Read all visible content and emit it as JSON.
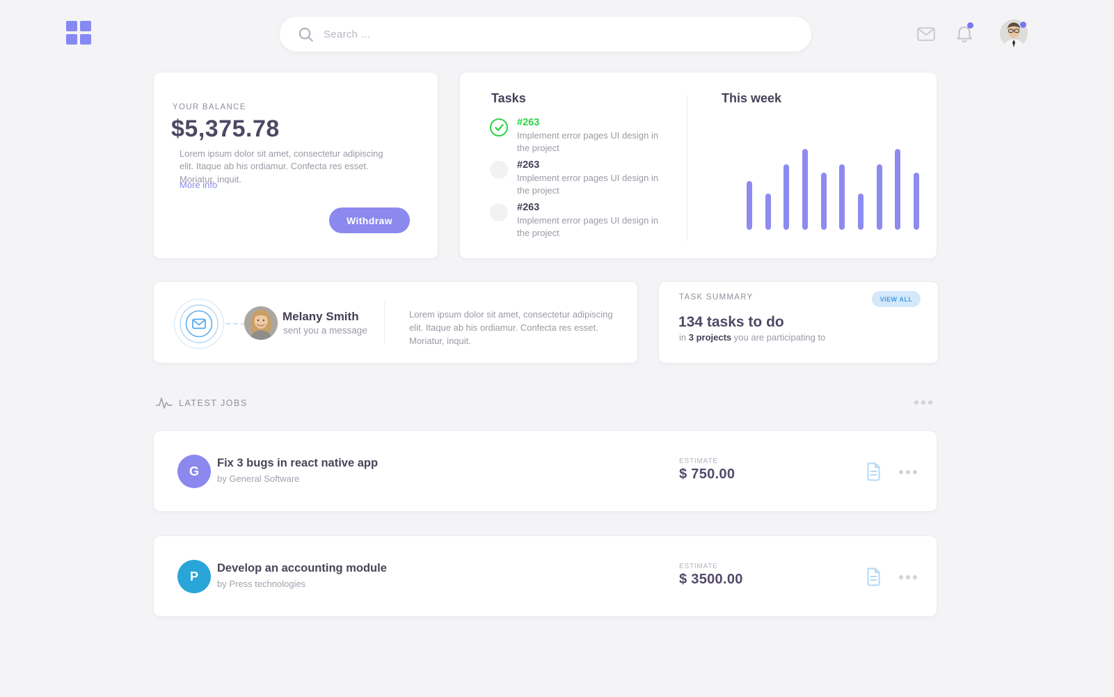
{
  "header": {
    "search": {
      "placeholder": "Search ..."
    },
    "icons": {
      "logo": "grid-icon",
      "search": "search-icon",
      "mail": "mail-icon",
      "notifications": "bell-icon",
      "profile": "avatar"
    }
  },
  "balance_card": {
    "label": "YOUR BALANCE",
    "amount": "$5,375.78",
    "description": "Lorem ipsum dolor sit amet, consectetur adipiscing elit. Itaque ab his ordiamur. Confecta res esset. Moriatur, inquit.",
    "more_info_label": "More info",
    "withdraw_label": "Withdraw"
  },
  "tasks_card": {
    "title": "Tasks",
    "items": [
      {
        "id": "#263",
        "description": "Implement error pages UI design in the project",
        "status": "done"
      },
      {
        "id": "#263",
        "description": "Implement error pages UI design in the project",
        "status": "pending"
      },
      {
        "id": "#263",
        "description": "Implement error pages UI design in the project",
        "status": "pending"
      }
    ]
  },
  "chart_data": {
    "type": "bar",
    "title": "This week",
    "x": [
      1,
      2,
      3,
      4,
      5,
      6,
      7,
      8,
      9,
      10
    ],
    "values": [
      60,
      45,
      81,
      100,
      71,
      81,
      45,
      81,
      100,
      71
    ],
    "ylim": [
      0,
      100
    ],
    "xlabel": "",
    "ylabel": "",
    "grid": false,
    "tick_labels_visible": false,
    "bar_color": "#8d8bf0",
    "legend": "none"
  },
  "message_card": {
    "icon": "envelope-rings-icon",
    "name": "Melany Smith",
    "subtitle": "sent you a message",
    "text": "Lorem ipsum dolor sit amet, consectetur adipiscing elit. Itaque ab his ordiamur. Confecta res esset. Moriatur, inquit."
  },
  "summary_card": {
    "label": "TASK SUMMARY",
    "view_all_label": "VIEW ALL",
    "headline": "134 tasks to do",
    "sub_prefix": "in ",
    "sub_bold": "3 projects",
    "sub_suffix": " you are participating to"
  },
  "jobs_section": {
    "title": "LATEST JOBS",
    "more_icon": "ellipsis-icon",
    "items": [
      {
        "initial": "G",
        "title": "Fix 3 bugs in react native app",
        "company": "by General Software",
        "estimate_label": "ESTIMATE",
        "estimate": "$ 750.00",
        "avatar_color": "#8b89ee"
      },
      {
        "initial": "P",
        "title": "Develop an accounting module",
        "company": "by Press technologies",
        "estimate_label": "ESTIMATE",
        "estimate": "$ 3500.00",
        "avatar_color": "#29a5d8"
      }
    ]
  },
  "colors": {
    "page_background": "#f4f4f6",
    "accent_purple": "#8b89ee",
    "chart_bar": "#8d8bf0",
    "done_green": "#2ed147",
    "job_blue": "#29a5d8",
    "view_all_bg": "#d4e8fa",
    "view_all_text": "#3f9be7",
    "text_dark": "#4a4458",
    "text_gray": "#9b9aa5",
    "notification_dot": "#7677f1"
  }
}
